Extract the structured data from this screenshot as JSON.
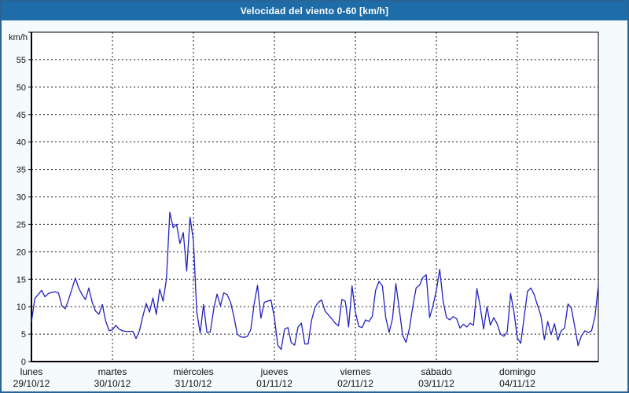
{
  "header": {
    "title": "Velocidad del viento 0-60 [km/h]"
  },
  "colors": {
    "header_bg": "#1f6da8",
    "page_bg": "#f5fafc",
    "page_border": "#2a6496",
    "plot_bg": "#ffffff",
    "plot_border": "#000000",
    "grid": "#1a1a1a",
    "line": "#2222bf",
    "text": "#111111"
  },
  "chart_data": {
    "type": "line",
    "title": "Velocidad del viento 0-60 [km/h]",
    "y_unit_label": "km/h",
    "ylabel": "km/h",
    "xlabel": "",
    "ylim": [
      0,
      60
    ],
    "ytick_step": 5,
    "grid": "dashed",
    "legend": "none",
    "x_days": [
      {
        "name": "lunes",
        "date": "29/10/12"
      },
      {
        "name": "martes",
        "date": "30/10/12"
      },
      {
        "name": "miércoles",
        "date": "31/10/12"
      },
      {
        "name": "jueves",
        "date": "01/11/12"
      },
      {
        "name": "viernes",
        "date": "02/11/12"
      },
      {
        "name": "sábado",
        "date": "03/11/12"
      },
      {
        "name": "domingo",
        "date": "04/11/12"
      }
    ],
    "points_per_day": 24,
    "series": [
      {
        "name": "velocidad del viento",
        "color": "#2222bf",
        "values": [
          7.2,
          11.5,
          12.2,
          13.0,
          11.8,
          12.4,
          12.6,
          12.7,
          12.5,
          10.2,
          9.6,
          11.3,
          13.2,
          15.2,
          13.4,
          12.2,
          11.3,
          13.4,
          10.8,
          9.2,
          8.6,
          10.4,
          7.4,
          5.6,
          5.8,
          6.6,
          5.9,
          5.6,
          5.5,
          5.5,
          5.5,
          4.2,
          5.6,
          8.2,
          10.6,
          9.0,
          11.6,
          8.6,
          13.2,
          11.0,
          15.0,
          27.2,
          24.4,
          25.0,
          21.5,
          23.5,
          16.5,
          26.3,
          22.0,
          9.0,
          5.2,
          10.4,
          5.3,
          5.4,
          9.5,
          12.3,
          10.2,
          12.5,
          12.2,
          10.8,
          8.2,
          5.0,
          4.5,
          4.4,
          4.6,
          5.8,
          10.5,
          13.9,
          7.9,
          10.8,
          11.0,
          11.2,
          8.0,
          3.0,
          2.2,
          5.9,
          6.2,
          3.4,
          3.0,
          6.3,
          7.0,
          3.2,
          3.2,
          7.5,
          9.8,
          10.8,
          11.2,
          9.2,
          8.5,
          7.8,
          7.0,
          6.5,
          11.3,
          11.0,
          6.3,
          13.8,
          9.0,
          6.4,
          6.2,
          7.6,
          7.3,
          8.2,
          13.0,
          14.6,
          13.8,
          8.0,
          5.3,
          7.8,
          14.2,
          9.6,
          4.8,
          3.5,
          6.0,
          10.0,
          13.4,
          13.9,
          15.3,
          15.8,
          8.0,
          10.2,
          13.0,
          16.8,
          11.0,
          8.0,
          7.6,
          8.2,
          7.8,
          6.1,
          6.8,
          6.3,
          7.0,
          6.6,
          13.3,
          10.0,
          5.9,
          10.0,
          6.6,
          8.0,
          6.9,
          5.0,
          4.6,
          5.4,
          12.4,
          9.0,
          4.3,
          3.3,
          8.0,
          12.8,
          13.4,
          12.2,
          10.2,
          8.3,
          4.0,
          7.3,
          4.9,
          6.9,
          3.9,
          5.6,
          6.1,
          10.5,
          9.7,
          6.4,
          2.9,
          4.7,
          5.6,
          5.3,
          5.6,
          8.2,
          13.8
        ]
      }
    ]
  }
}
